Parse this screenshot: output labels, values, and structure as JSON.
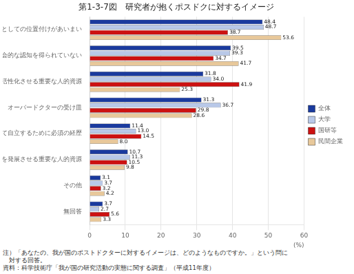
{
  "chart_data": {
    "type": "bar",
    "orientation": "horizontal",
    "title": "第1-3-7図　研究者が抱くポスドクに対するイメージ",
    "xlabel": "(%)",
    "categories": [
      "研究者としての位置付けがあいまい",
      "社会的な認知を得られていない",
      "研究開発を活性化させる重要な人的資源",
      "オーバードクターの受け皿",
      "研究者として自立するために必須の経歴",
      "国際的な研究社会を発展させる重要な人的資源",
      "その他",
      "無回答"
    ],
    "series": [
      {
        "name": "全体",
        "color": "#1a3a9e",
        "values": [
          48.4,
          39.5,
          31.8,
          31.3,
          11.4,
          10.7,
          3.1,
          3.7
        ]
      },
      {
        "name": "大学",
        "color": "#b8c8e8",
        "values": [
          48.7,
          39.3,
          34.0,
          36.7,
          13.0,
          11.3,
          3.7,
          2.7
        ],
        "value_labels": [
          "48.7",
          "39.3",
          "34.0",
          "36.7",
          "13.0",
          "11.3",
          "3.7",
          "2.7"
        ]
      },
      {
        "name": "国研等",
        "color": "#cc1111",
        "values": [
          38.7,
          34.7,
          41.9,
          29.8,
          14.5,
          10.5,
          3.2,
          5.6
        ]
      },
      {
        "name": "民間企業",
        "color": "#e8c89a",
        "values": [
          53.6,
          41.7,
          25.3,
          28.6,
          8.0,
          9.8,
          4.2,
          3.3
        ],
        "value_labels": [
          "53.6",
          "41.7",
          "25.3",
          "28.6",
          "8.0",
          "9.8",
          "4.2",
          "3.3"
        ]
      }
    ],
    "xlim": [
      0,
      60
    ],
    "xticks": [
      0,
      10,
      20,
      30,
      40,
      50,
      60
    ],
    "grid": true,
    "legend": "right",
    "data_labels": true,
    "annotations": [
      "注）「あなたの、我が国のポストドクターに対するイメージは、どのようなものですか。」という問に",
      "　対する回答。",
      "資料：科学技術庁「我が国の研究活動の実態に関する調査」（平成11年度）"
    ]
  }
}
